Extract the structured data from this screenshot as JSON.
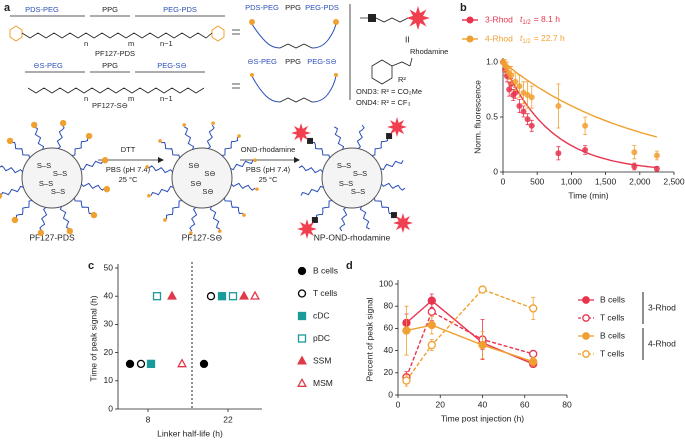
{
  "panel_labels": [
    "a",
    "b",
    "c",
    "d"
  ],
  "diagram": {
    "top_polymer": {
      "segments": [
        "PDS-PEG",
        "PPG",
        "PEG-PDS"
      ],
      "subscripts": [
        "n",
        "m",
        "n−1"
      ],
      "name": "PF127-PDS"
    },
    "bottom_polymer": {
      "segments": [
        "⊖S-PEG",
        "PPG",
        "PEG-S⊖"
      ],
      "subscripts": [
        "n",
        "m",
        "n−1"
      ],
      "name": "PF127-S⊖"
    },
    "top_schematic": [
      "PDS-PEG",
      "PPG",
      "PEG-PDS"
    ],
    "bottom_schematic": [
      "⊖S-PEG",
      "PPG",
      "PEG-S⊖"
    ],
    "probe": {
      "number": "II",
      "rhodamine": "Rhodamine",
      "r2": "R²",
      "ond3": "OND3: R² = CO₂Me",
      "ond4": "OND4: R² = CF₃"
    },
    "step1": {
      "reagent": "DTT",
      "buffer": "PBS (pH 7.4)",
      "temp": "25 °C"
    },
    "step2": {
      "reagent": "OND-rhodamine",
      "buffer": "PBS (pH 7.4)",
      "temp": "25 °C"
    },
    "core_labels": [
      "S–S",
      "S⊖"
    ],
    "particles": [
      "PF127-PDS",
      "PF127-S⊖",
      "NP-OND-rhodamine"
    ]
  },
  "chart_data": [
    {
      "type": "scatter",
      "x_label": "Time (min)",
      "y_label": "Norm. fluorescence",
      "xlim": [
        0,
        2500
      ],
      "xticks": [
        0,
        500,
        {
          "value": 1000,
          "label": "1,000"
        },
        {
          "value": 1500,
          "label": "1,500"
        },
        {
          "value": 2000,
          "label": "2,000"
        },
        {
          "value": 2500,
          "label": "2,500"
        }
      ],
      "ylim": [
        0,
        1
      ],
      "yticks": [
        0,
        0.5,
        {
          "value": 1,
          "label": "1.0"
        }
      ],
      "half_life_symbol": {
        "base": "t",
        "sub": "1/2"
      },
      "series": [
        {
          "name": "3-Rhod",
          "color": "#e8344e",
          "half_life": 8.1,
          "half_life_label": "= 8.1 h",
          "x": [
            0,
            30,
            60,
            90,
            120,
            150,
            180,
            240,
            300,
            360,
            420,
            810,
            1200,
            1920,
            2250
          ],
          "values": [
            1.0,
            0.93,
            0.87,
            0.75,
            0.8,
            0.7,
            0.72,
            0.6,
            0.55,
            0.48,
            0.42,
            0.17,
            0.2,
            0.05,
            0.03
          ],
          "errors": [
            0.02,
            0.05,
            0.05,
            0.06,
            0.05,
            0.05,
            0.05,
            0.06,
            0.05,
            0.05,
            0.05,
            0.06,
            0.04,
            0.03,
            0.02
          ]
        },
        {
          "name": "4-Rhod",
          "color": "#f0a030",
          "half_life": 22.7,
          "half_life_label": "= 22.7 h",
          "x": [
            0,
            30,
            60,
            90,
            120,
            180,
            240,
            300,
            360,
            420,
            810,
            1200,
            1920,
            2250
          ],
          "values": [
            1.0,
            0.97,
            0.95,
            0.9,
            0.88,
            0.82,
            0.78,
            0.72,
            0.7,
            0.68,
            0.6,
            0.42,
            0.18,
            0.15
          ],
          "errors": [
            0.02,
            0.05,
            0.05,
            0.06,
            0.08,
            0.08,
            0.1,
            0.1,
            0.12,
            0.1,
            0.2,
            0.08,
            0.06,
            0.04
          ]
        }
      ]
    },
    {
      "type": "scatter",
      "x_label": "Linker half-life (h)",
      "y_label": "Time of peak signal (h)",
      "categories": [
        "8",
        "22"
      ],
      "ylim": [
        0,
        50
      ],
      "yticks": [
        0,
        10,
        20,
        30,
        40,
        50
      ],
      "series": [
        {
          "name": "B cells",
          "color": "#000000",
          "marker": "circle",
          "filled": true,
          "values": [
            16,
            16
          ]
        },
        {
          "name": "T cells",
          "color": "#000000",
          "marker": "circle",
          "filled": false,
          "values": [
            16,
            40
          ]
        },
        {
          "name": "cDC",
          "color": "#1a9a9a",
          "marker": "square",
          "filled": true,
          "values": [
            16,
            40
          ]
        },
        {
          "name": "pDC",
          "color": "#1a9a9a",
          "marker": "square",
          "filled": false,
          "values": [
            40,
            40
          ]
        },
        {
          "name": "SSM",
          "color": "#e03a4a",
          "marker": "triangle",
          "filled": true,
          "values": [
            40,
            40
          ]
        },
        {
          "name": "MSM",
          "color": "#e03a4a",
          "marker": "triangle",
          "filled": false,
          "values": [
            16,
            40
          ]
        }
      ]
    },
    {
      "type": "line",
      "x_label": "Time post injection (h)",
      "y_label": "Percent of peak signal",
      "x": [
        4,
        16,
        40,
        64
      ],
      "xlim": [
        0,
        80
      ],
      "xticks": [
        0,
        20,
        40,
        60,
        80
      ],
      "ylim": [
        0,
        100
      ],
      "yticks": [
        0,
        20,
        40,
        60,
        80,
        100
      ],
      "groups": [
        {
          "name": "3-Rhod",
          "series": [
            {
              "name": "B cells",
              "color": "#e8344e",
              "filled": true,
              "dashed": false,
              "values": [
                65,
                85,
                47,
                28
              ],
              "errors": [
                8,
                6,
                6,
                3
              ]
            },
            {
              "name": "T cells",
              "color": "#e8344e",
              "filled": false,
              "dashed": true,
              "values": [
                16,
                75,
                50,
                37
              ],
              "errors": [
                5,
                8,
                18,
                3
              ]
            }
          ]
        },
        {
          "name": "4-Rhod",
          "series": [
            {
              "name": "B cells",
              "color": "#f0a030",
              "filled": true,
              "dashed": false,
              "values": [
                58,
                63,
                45,
                30
              ],
              "errors": [
                22,
                8,
                12,
                4
              ]
            },
            {
              "name": "T cells",
              "color": "#f0a030",
              "filled": false,
              "dashed": true,
              "values": [
                13,
                45,
                95,
                78
              ],
              "errors": [
                5,
                5,
                3,
                10
              ]
            }
          ]
        }
      ]
    }
  ]
}
